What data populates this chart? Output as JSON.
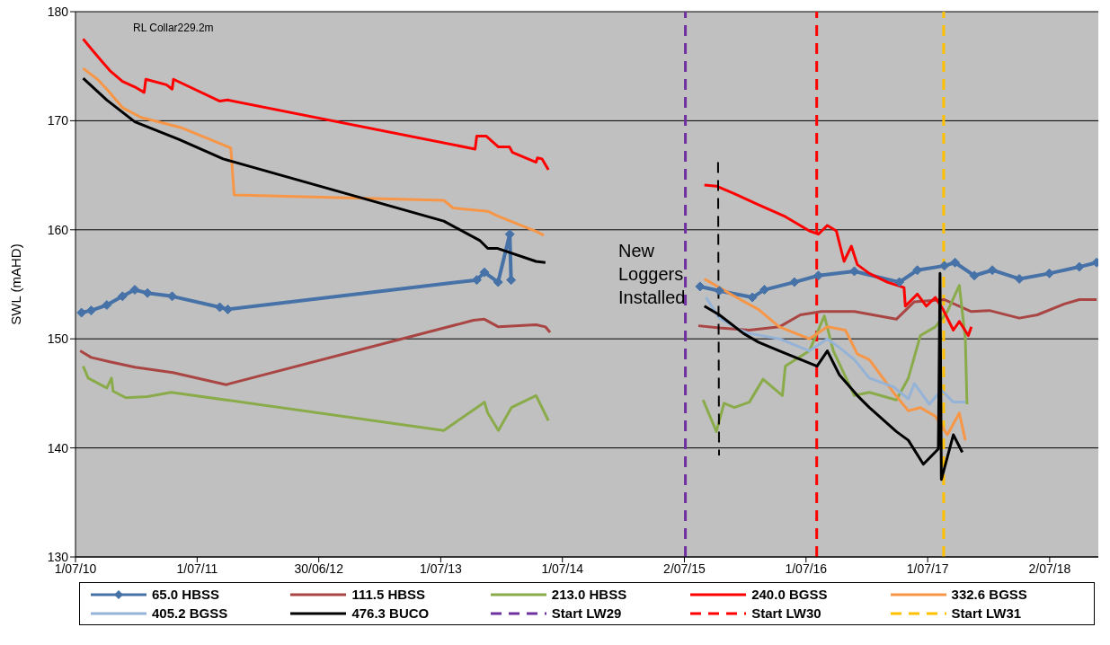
{
  "chart_data": {
    "type": "line",
    "ylabel": "SWL (mAHD)",
    "xlim": [
      "2010-07-01",
      "2018-11-25"
    ],
    "ylim": [
      130,
      180
    ],
    "yticks": [
      130,
      140,
      150,
      160,
      170,
      180
    ],
    "xticks": [
      {
        "value": "2010-07-01",
        "label": "1/07/10"
      },
      {
        "value": "2011-07-01",
        "label": "1/07/11"
      },
      {
        "value": "2012-06-30",
        "label": "30/06/12"
      },
      {
        "value": "2013-07-01",
        "label": "1/07/13"
      },
      {
        "value": "2014-07-01",
        "label": "1/07/14"
      },
      {
        "value": "2015-07-02",
        "label": "2/07/15"
      },
      {
        "value": "2016-07-01",
        "label": "1/07/16"
      },
      {
        "value": "2017-07-01",
        "label": "1/07/17"
      },
      {
        "value": "2018-07-02",
        "label": "2/07/18"
      }
    ],
    "grid": "y",
    "legend": "bottom",
    "line_style": "solid",
    "annotations": [
      "RL Collar229.2m",
      "New Loggers Installed"
    ],
    "ref_lines": [
      {
        "axis": "x",
        "value": "2015-07-05",
        "label": "Start LW29",
        "color": "#7030a0",
        "line_style": "dashed"
      },
      {
        "axis": "x",
        "value": "2016-08-02",
        "label": "Start LW30",
        "color": "#ff0000",
        "line_style": "dashed"
      },
      {
        "axis": "x",
        "value": "2017-08-18",
        "label": "Start LW31",
        "color": "#ffc000",
        "line_style": "dashed"
      }
    ],
    "series": [
      {
        "name": "65.0 HBSS",
        "color": "#4672a8",
        "marker": "diamond",
        "x": [
          "2010-07-19",
          "2010-08-17",
          "2010-10-03",
          "2010-11-19",
          "2010-12-26",
          "2011-02-02",
          "2011-04-17",
          "2011-09-07",
          "2011-10-01",
          "2013-10-17",
          "2013-11-09",
          "2013-12-20",
          "2014-01-24",
          "2014-01-28",
          "2015-01-01",
          "2015-08-18",
          "2015-10-15",
          "2016-01-22",
          "2016-02-27",
          "2016-05-27",
          "2016-08-07",
          "2016-11-23",
          "2017-04-07",
          "2017-05-31",
          "2017-08-20",
          "2017-09-21",
          "2017-11-18",
          "2018-01-11",
          "2018-04-02",
          "2018-07-01",
          "2018-09-29",
          "2018-11-20"
        ],
        "values": [
          152.4,
          152.6,
          153.1,
          153.9,
          154.5,
          154.2,
          153.9,
          152.9,
          152.7,
          155.4,
          156.1,
          155.2,
          159.6,
          155.4,
          null,
          154.8,
          154.4,
          153.8,
          154.5,
          155.2,
          155.8,
          156.2,
          155.2,
          156.3,
          156.7,
          157.0,
          155.8,
          156.3,
          155.5,
          156.0,
          156.6,
          157.0
        ]
      },
      {
        "name": "111.5 HBSS",
        "color": "#a94543",
        "x": [
          "2010-07-15",
          "2010-08-17",
          "2010-10-12",
          "2010-12-26",
          "2011-04-19",
          "2011-09-26",
          "2013-10-07",
          "2013-11-09",
          "2013-12-21",
          "2014-04-13",
          "2014-05-11",
          "2014-05-25",
          "2015-01-01",
          "2015-08-13",
          "2015-10-15",
          "2016-01-13",
          "2016-04-12",
          "2016-06-14",
          "2016-08-16",
          "2016-11-23",
          "2017-03-29",
          "2017-05-22",
          "2017-08-20",
          "2017-11-09",
          "2018-01-02",
          "2018-04-02",
          "2018-05-26",
          "2018-08-15",
          "2018-09-29",
          "2018-11-20"
        ],
        "values": [
          148.9,
          148.3,
          147.9,
          147.4,
          146.9,
          145.8,
          151.7,
          151.8,
          151.1,
          151.3,
          151.1,
          150.6,
          null,
          151.2,
          151.0,
          150.8,
          151.1,
          152.2,
          152.5,
          152.5,
          151.8,
          153.4,
          153.6,
          152.5,
          152.6,
          151.9,
          152.2,
          153.2,
          153.6,
          153.6
        ]
      },
      {
        "name": "213.0 HBSS",
        "color": "#8aab4a",
        "x": [
          "2010-07-24",
          "2010-08-08",
          "2010-10-03",
          "2010-10-17",
          "2010-10-22",
          "2010-11-29",
          "2011-02-02",
          "2011-04-14",
          "2013-07-10",
          "2013-10-22",
          "2013-11-09",
          "2013-11-19",
          "2013-12-21",
          "2014-01-29",
          "2014-04-13",
          "2014-05-20",
          "2015-01-01",
          "2015-08-27",
          "2015-10-06",
          "2015-10-29",
          "2015-11-29",
          "2016-01-13",
          "2016-02-23",
          "2016-04-21",
          "2016-04-30",
          "2016-07-11",
          "2016-08-25",
          "2016-09-21",
          "2016-11-23",
          "2017-01-07",
          "2017-03-29",
          "2017-05-04",
          "2017-06-09",
          "2017-07-24",
          "2017-08-29",
          "2017-10-04",
          "2017-10-22",
          "2017-10-27"
        ],
        "values": [
          147.5,
          146.4,
          145.5,
          146.4,
          145.2,
          144.6,
          144.7,
          145.1,
          141.6,
          143.8,
          144.2,
          143.2,
          141.6,
          143.7,
          144.8,
          142.5,
          null,
          144.4,
          141.5,
          144.1,
          143.7,
          144.2,
          146.3,
          144.8,
          147.5,
          148.9,
          152.1,
          148.9,
          144.8,
          145.1,
          144.4,
          146.4,
          150.3,
          151.1,
          152.5,
          154.9,
          150.0,
          144.0
        ]
      },
      {
        "name": "240.0 BGSS",
        "color": "#ff0000",
        "x": [
          "2010-07-24",
          "2010-08-17",
          "2010-09-14",
          "2010-10-12",
          "2010-11-19",
          "2010-12-26",
          "2011-01-23",
          "2011-01-28",
          "2011-03-31",
          "2011-04-17",
          "2011-04-21",
          "2011-09-07",
          "2011-10-01",
          "2013-10-12",
          "2013-10-17",
          "2013-11-14",
          "2013-12-21",
          "2014-01-23",
          "2014-02-01",
          "2014-04-13",
          "2014-04-17",
          "2014-05-01",
          "2014-05-20",
          "2015-01-01",
          "2015-08-31",
          "2015-10-06",
          "2015-11-29",
          "2016-02-09",
          "2016-04-30",
          "2016-07-11",
          "2016-08-07",
          "2016-09-03",
          "2016-09-30",
          "2016-10-23",
          "2016-11-14",
          "2016-12-02",
          "2017-01-07",
          "2017-03-02",
          "2017-04-21",
          "2017-04-25",
          "2017-05-31",
          "2017-06-27",
          "2017-07-24",
          "2017-08-16",
          "2017-09-16",
          "2017-10-04",
          "2017-10-31",
          "2017-11-09"
        ],
        "values": [
          177.5,
          176.6,
          175.6,
          174.6,
          173.6,
          173.1,
          172.6,
          173.8,
          173.3,
          172.9,
          173.8,
          171.8,
          171.9,
          167.4,
          168.6,
          168.6,
          167.6,
          167.6,
          167.1,
          166.2,
          166.6,
          166.5,
          165.5,
          null,
          164.1,
          164.0,
          163.3,
          162.3,
          161.2,
          159.9,
          159.6,
          160.4,
          159.9,
          157.1,
          158.5,
          156.8,
          156.0,
          155.2,
          154.7,
          153.0,
          154.1,
          153.0,
          153.8,
          152.7,
          150.8,
          151.6,
          150.3,
          151.1
        ]
      },
      {
        "name": "332.6 BGSS",
        "color": "#f79646",
        "x": [
          "2010-07-24",
          "2010-09-05",
          "2010-10-03",
          "2010-11-19",
          "2011-01-14",
          "2011-05-11",
          "2011-10-10",
          "2011-10-20",
          "2013-07-10",
          "2013-08-07",
          "2013-11-19",
          "2013-12-17",
          "2014-04-17",
          "2014-05-06",
          "2015-01-01",
          "2015-08-31",
          "2015-10-15",
          "2015-12-17",
          "2016-02-09",
          "2016-04-12",
          "2016-07-11",
          "2016-09-03",
          "2016-10-27",
          "2016-12-02",
          "2017-01-07",
          "2017-03-20",
          "2017-05-04",
          "2017-06-09",
          "2017-07-24",
          "2017-08-29",
          "2017-10-04",
          "2017-10-22"
        ],
        "values": [
          174.8,
          173.8,
          172.9,
          171.2,
          170.3,
          169.4,
          167.5,
          163.2,
          162.7,
          162.0,
          161.7,
          161.3,
          159.8,
          159.5,
          null,
          155.5,
          154.7,
          153.6,
          152.7,
          151.1,
          150.0,
          151.1,
          150.8,
          148.6,
          148.1,
          145.1,
          143.4,
          143.7,
          142.9,
          141.2,
          143.2,
          140.7
        ]
      },
      {
        "name": "405.2 BGSS",
        "color": "#95b3d7",
        "x": [
          "2015-09-05",
          "2015-10-15",
          "2015-12-17",
          "2016-01-13",
          "2016-04-12",
          "2016-07-11",
          "2016-09-03",
          "2016-10-09",
          "2016-11-23",
          "2017-01-07",
          "2017-03-20",
          "2017-05-04",
          "2017-05-22",
          "2017-07-06",
          "2017-08-11",
          "2017-09-16",
          "2017-10-22"
        ],
        "values": [
          153.8,
          151.9,
          150.8,
          150.5,
          150.0,
          148.9,
          150.0,
          149.2,
          148.1,
          146.4,
          145.6,
          144.5,
          145.9,
          144.0,
          145.3,
          144.2,
          144.2
        ]
      },
      {
        "name": "476.3 BUCO",
        "color": "#000000",
        "x": [
          "2010-07-24",
          "2010-10-03",
          "2010-12-26",
          "2011-05-07",
          "2011-09-17",
          "2013-07-10",
          "2013-10-27",
          "2013-11-19",
          "2013-12-17",
          "2014-04-13",
          "2014-05-11",
          "2015-01-01",
          "2015-08-31",
          "2015-10-15",
          "2015-12-26",
          "2016-02-09",
          "2016-04-12",
          "2016-08-03",
          "2016-09-03",
          "2016-10-09",
          "2016-12-02",
          "2017-01-07",
          "2017-03-29",
          "2017-05-04",
          "2017-06-18",
          "2017-08-02",
          "2017-08-07",
          "2017-08-11",
          "2017-09-16",
          "2017-10-13"
        ],
        "values": [
          173.9,
          171.9,
          169.9,
          168.3,
          166.5,
          160.8,
          159.0,
          158.3,
          158.3,
          157.1,
          157.0,
          null,
          153.0,
          152.2,
          150.5,
          149.7,
          148.9,
          147.5,
          148.9,
          146.7,
          144.8,
          143.7,
          141.5,
          140.7,
          138.5,
          139.9,
          156.0,
          137.1,
          141.2,
          139.6
        ]
      },
      {
        "color": "#000000",
        "line_style": "dashed",
        "x": [
          "2015-10-11",
          "2015-10-14"
        ],
        "values": [
          166.2,
          139.3
        ]
      }
    ]
  }
}
